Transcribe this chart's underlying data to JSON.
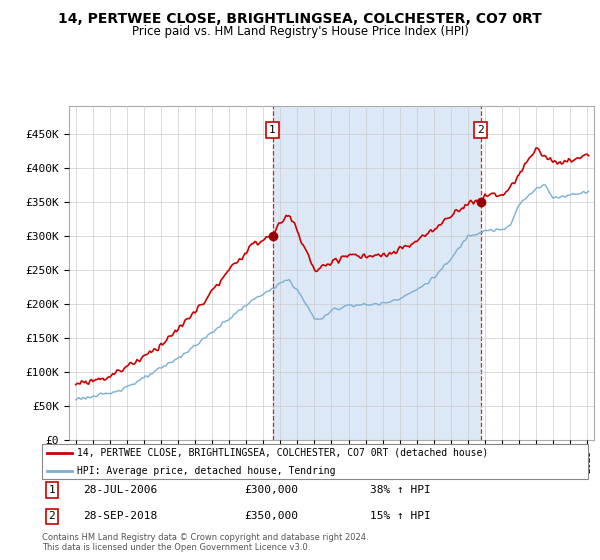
{
  "title1": "14, PERTWEE CLOSE, BRIGHTLINGSEA, COLCHESTER, CO7 0RT",
  "title2": "Price paid vs. HM Land Registry's House Price Index (HPI)",
  "legend_line1": "14, PERTWEE CLOSE, BRIGHTLINGSEA, COLCHESTER, CO7 0RT (detached house)",
  "legend_line2": "HPI: Average price, detached house, Tendring",
  "footer1": "Contains HM Land Registry data © Crown copyright and database right 2024.",
  "footer2": "This data is licensed under the Open Government Licence v3.0.",
  "transaction1_label": "1",
  "transaction1_date": "28-JUL-2006",
  "transaction1_price": "£300,000",
  "transaction1_hpi": "38% ↑ HPI",
  "transaction2_label": "2",
  "transaction2_date": "28-SEP-2018",
  "transaction2_price": "£350,000",
  "transaction2_hpi": "15% ↑ HPI",
  "sale1_year": 2006.54,
  "sale1_price": 300000,
  "sale2_year": 2018.75,
  "sale2_price": 350000,
  "line_color_price": "#cc0000",
  "line_color_hpi": "#7ab0d4",
  "bg_color_main": "#dce8f5",
  "bg_color_left": "#ffffff",
  "plot_bg": "#ffffff",
  "dashed_color": "#cc0000",
  "marker_color": "#990000",
  "ylim_min": 0,
  "ylim_max": 490000,
  "yticks": [
    0,
    50000,
    100000,
    150000,
    200000,
    250000,
    300000,
    350000,
    400000,
    450000
  ],
  "ytick_labels": [
    "£0",
    "£50K",
    "£100K",
    "£150K",
    "£200K",
    "£250K",
    "£300K",
    "£350K",
    "£400K",
    "£450K"
  ],
  "xmin": 1994.6,
  "xmax": 2025.4
}
